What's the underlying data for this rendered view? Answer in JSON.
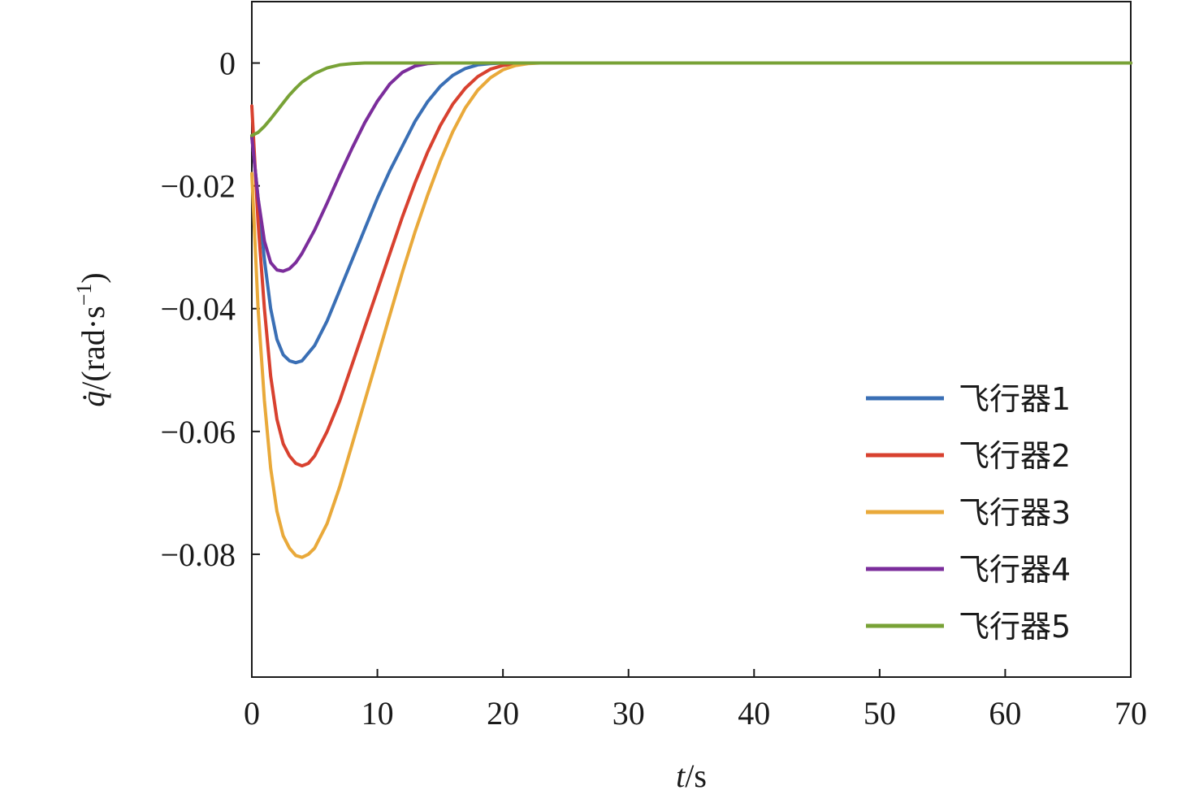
{
  "chart_data": {
    "type": "line",
    "xlabel_italic": "t",
    "xlabel_unit": "/s",
    "ylabel_italic": "q̇",
    "ylabel_unit": "/(rad·s",
    "ylabel_exp": "−1",
    "ylabel_close": ")",
    "xlim": [
      0,
      70
    ],
    "ylim": [
      -0.1,
      0.01
    ],
    "xticks": [
      0,
      10,
      20,
      30,
      40,
      50,
      60,
      70
    ],
    "xtick_labels": [
      "0",
      "10",
      "20",
      "30",
      "40",
      "50",
      "60",
      "70"
    ],
    "yticks": [
      0,
      -0.02,
      -0.04,
      -0.06,
      -0.08
    ],
    "ytick_labels": [
      "0",
      "−0.02",
      "−0.04",
      "−0.06",
      "−0.08"
    ],
    "grid": false,
    "legend_position": "lower-right",
    "series": [
      {
        "name": "飞行器1",
        "color": "#3a6fb5",
        "x": [
          0,
          0.5,
          1,
          1.5,
          2,
          2.5,
          3,
          3.5,
          4,
          5,
          6,
          7,
          8,
          9,
          10,
          11,
          12,
          13,
          14,
          15,
          16,
          17,
          18,
          19,
          20,
          22,
          25,
          30,
          40,
          50,
          60,
          70
        ],
        "y": [
          -0.012,
          -0.022,
          -0.032,
          -0.04,
          -0.045,
          -0.0475,
          -0.0485,
          -0.0488,
          -0.0485,
          -0.046,
          -0.042,
          -0.037,
          -0.032,
          -0.027,
          -0.022,
          -0.0175,
          -0.0135,
          -0.0095,
          -0.0063,
          -0.0038,
          -0.002,
          -0.0009,
          -0.0003,
          -0.0001,
          0,
          0,
          0,
          0,
          0,
          0,
          0,
          0
        ]
      },
      {
        "name": "飞行器2",
        "color": "#d8412f",
        "x": [
          0,
          0.5,
          1,
          1.5,
          2,
          2.5,
          3,
          3.5,
          4,
          4.5,
          5,
          6,
          7,
          8,
          9,
          10,
          11,
          12,
          13,
          14,
          15,
          16,
          17,
          18,
          19,
          20,
          21,
          22,
          25,
          30,
          40,
          50,
          60,
          70
        ],
        "y": [
          -0.007,
          -0.026,
          -0.04,
          -0.051,
          -0.058,
          -0.062,
          -0.064,
          -0.0652,
          -0.0656,
          -0.0652,
          -0.064,
          -0.06,
          -0.055,
          -0.049,
          -0.043,
          -0.037,
          -0.031,
          -0.025,
          -0.0195,
          -0.0145,
          -0.0102,
          -0.0067,
          -0.0041,
          -0.0022,
          -0.001,
          -0.0004,
          -0.0001,
          0,
          0,
          0,
          0,
          0,
          0,
          0
        ]
      },
      {
        "name": "飞行器3",
        "color": "#e9a93a",
        "x": [
          0,
          0.5,
          1,
          1.5,
          2,
          2.5,
          3,
          3.5,
          4,
          4.5,
          5,
          6,
          7,
          8,
          9,
          10,
          11,
          12,
          13,
          14,
          15,
          16,
          17,
          18,
          19,
          20,
          21,
          22,
          23,
          25,
          30,
          40,
          50,
          60,
          70
        ],
        "y": [
          -0.018,
          -0.04,
          -0.055,
          -0.066,
          -0.073,
          -0.077,
          -0.079,
          -0.0802,
          -0.0805,
          -0.08,
          -0.079,
          -0.075,
          -0.069,
          -0.062,
          -0.055,
          -0.048,
          -0.041,
          -0.034,
          -0.0275,
          -0.0215,
          -0.016,
          -0.0112,
          -0.0073,
          -0.0044,
          -0.0024,
          -0.0011,
          -0.0004,
          -0.0001,
          0,
          0,
          0,
          0,
          0,
          0,
          0
        ]
      },
      {
        "name": "飞行器4",
        "color": "#7b2d9b",
        "x": [
          0,
          0.5,
          1,
          1.5,
          2,
          2.5,
          3,
          3.5,
          4,
          5,
          6,
          7,
          8,
          9,
          10,
          11,
          12,
          13,
          14,
          15,
          17,
          20,
          30,
          40,
          50,
          60,
          70
        ],
        "y": [
          -0.012,
          -0.022,
          -0.029,
          -0.0325,
          -0.0337,
          -0.0339,
          -0.0335,
          -0.0325,
          -0.031,
          -0.0272,
          -0.0228,
          -0.0182,
          -0.0138,
          -0.0097,
          -0.0062,
          -0.0034,
          -0.0015,
          -0.0005,
          -0.0001,
          0,
          0,
          0,
          0,
          0,
          0,
          0,
          0
        ]
      },
      {
        "name": "飞行器5",
        "color": "#78a236",
        "x": [
          0,
          0.5,
          1,
          1.5,
          2,
          2.5,
          3,
          3.5,
          4,
          5,
          6,
          7,
          8,
          9,
          10,
          12,
          15,
          20,
          30,
          40,
          50,
          60,
          70
        ],
        "y": [
          -0.0118,
          -0.0113,
          -0.0103,
          -0.0091,
          -0.0078,
          -0.0065,
          -0.0052,
          -0.0041,
          -0.0031,
          -0.0017,
          -0.0008,
          -0.0003,
          -0.0001,
          0,
          0,
          0,
          0,
          0,
          0,
          0,
          0,
          0,
          0
        ]
      }
    ]
  }
}
